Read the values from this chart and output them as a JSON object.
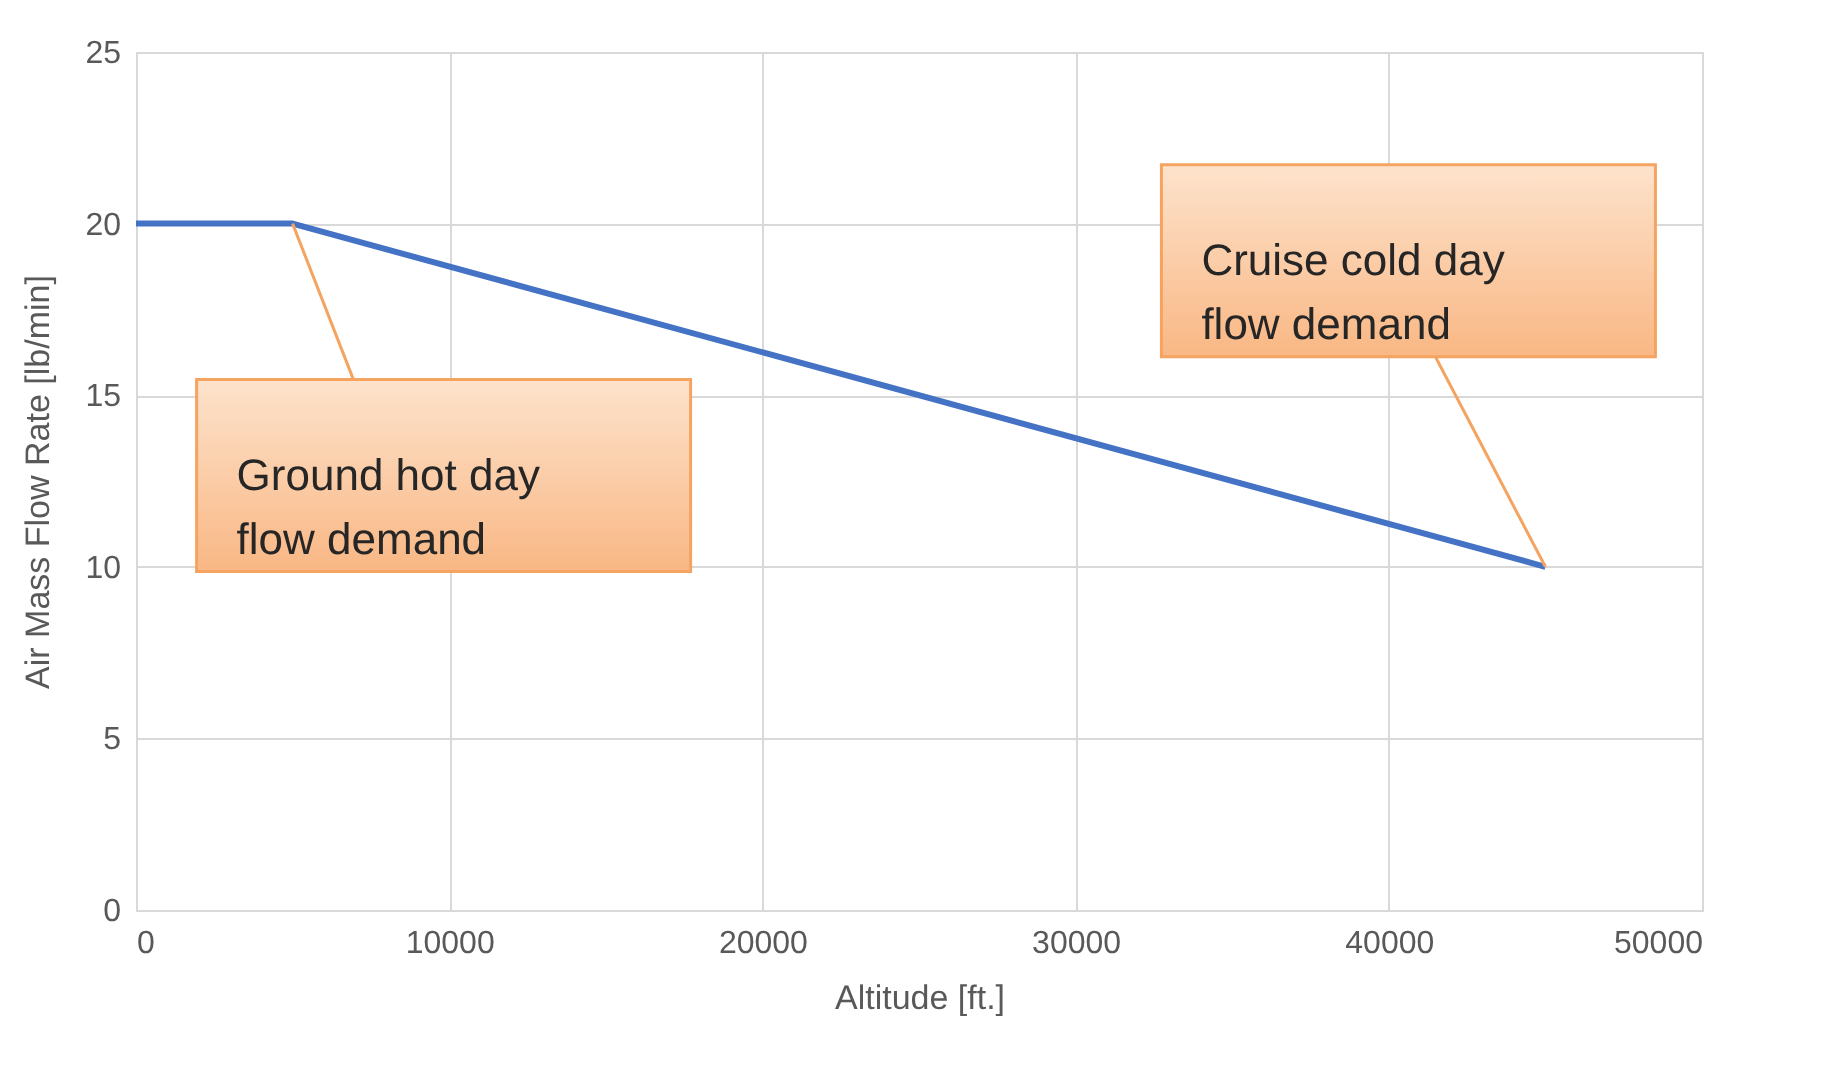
{
  "chart_data": {
    "type": "line",
    "xlabel": "Altitude [ft.]",
    "ylabel": "Air Mass Flow Rate [lb/min]",
    "x": [
      0,
      5000,
      45000
    ],
    "series": [
      {
        "color": "#4472c4",
        "values": [
          20,
          20,
          10
        ]
      }
    ],
    "xlim": [
      0,
      50000
    ],
    "xticks": [
      0,
      10000,
      20000,
      30000,
      40000,
      50000
    ],
    "ylim": [
      0,
      25
    ],
    "yticks": [
      0,
      5,
      10,
      15,
      20,
      25
    ],
    "grid": true,
    "legend": false,
    "marker": "none",
    "line_style": "solid",
    "annotations": [
      {
        "text": "Ground hot day\nflow demand",
        "x": 5000,
        "y": 20
      },
      {
        "text": "Cruise cold day\nflow demand",
        "x": 45000,
        "y": 10
      }
    ]
  }
}
